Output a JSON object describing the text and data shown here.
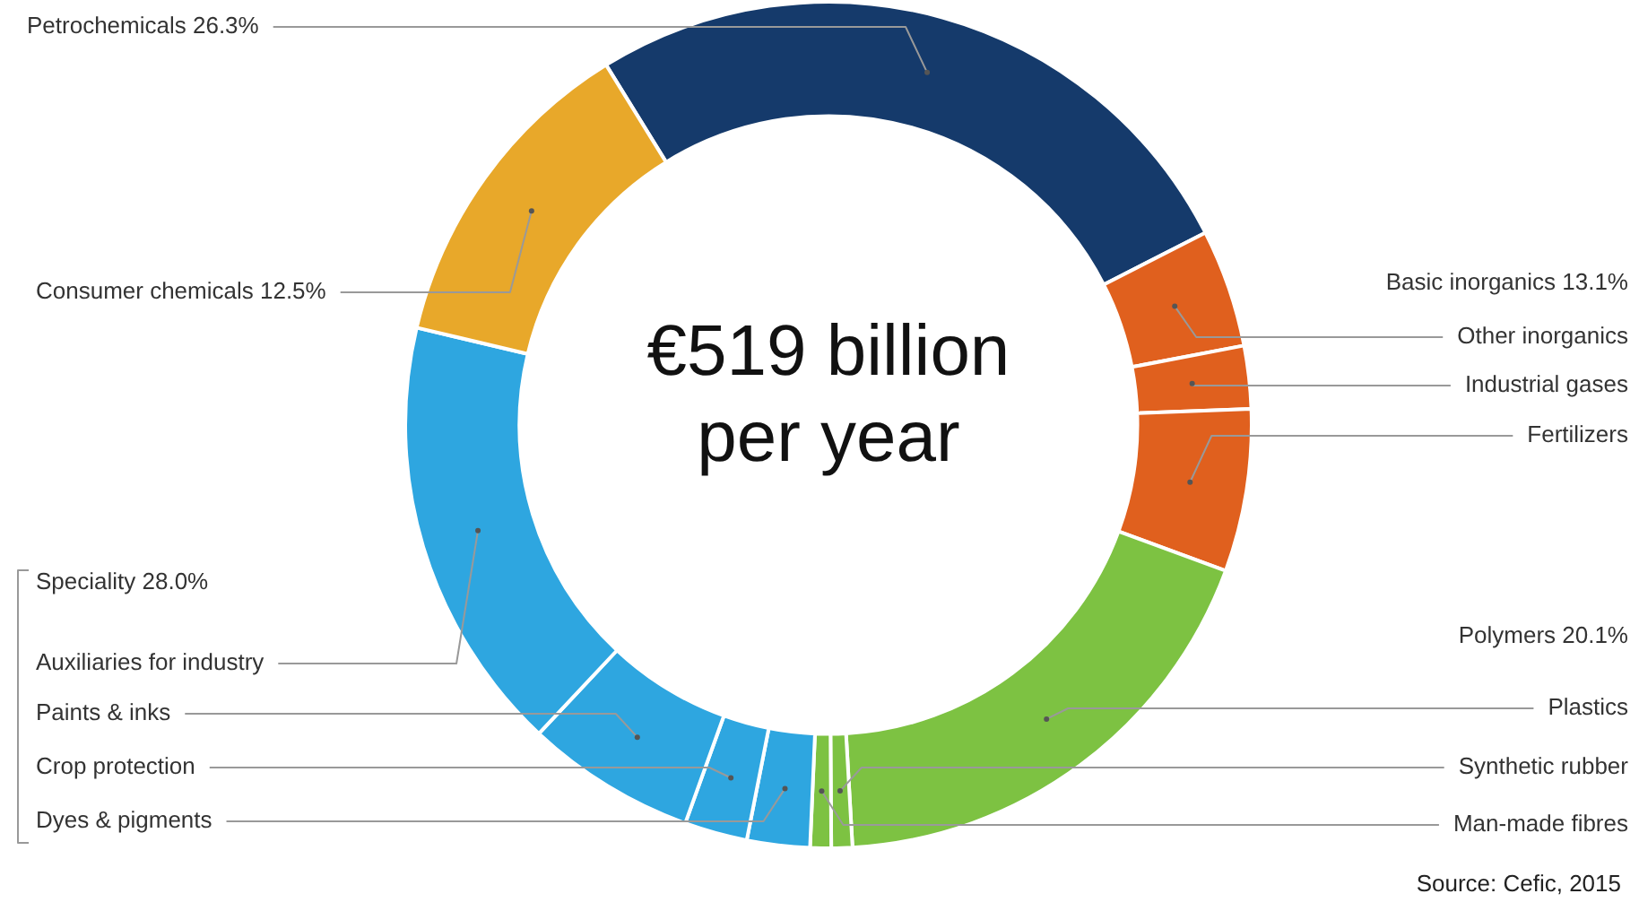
{
  "chart_data": {
    "type": "donut",
    "categories": [
      "Petrochemicals 26.3%",
      "Other inorganics",
      "Industrial gases",
      "Fertilizers",
      "Plastics",
      "Synthetic rubber",
      "Man-made fibres",
      "Dyes & pigments",
      "Crop protection",
      "Paints & inks",
      "Auxiliaries for industry",
      "Consumer chemicals 12.5%"
    ],
    "values": [
      26.3,
      4.5,
      2.4,
      6.2,
      18.5,
      0.8,
      0.8,
      2.4,
      2.4,
      6.5,
      16.7,
      12.5
    ],
    "colors": [
      "#153a6b",
      "#e0601e",
      "#e0601e",
      "#e0601e",
      "#7dc242",
      "#7dc242",
      "#7dc242",
      "#2ea6e0",
      "#2ea6e0",
      "#2ea6e0",
      "#2ea6e0",
      "#e8a82a"
    ],
    "annotations": [
      "Basic inorganics 13.1%",
      "Polymers 20.1%",
      "Speciality 28.0%",
      "€519 billion per year",
      "Source: Cefic, 2015"
    ],
    "legend": false
  }
}
